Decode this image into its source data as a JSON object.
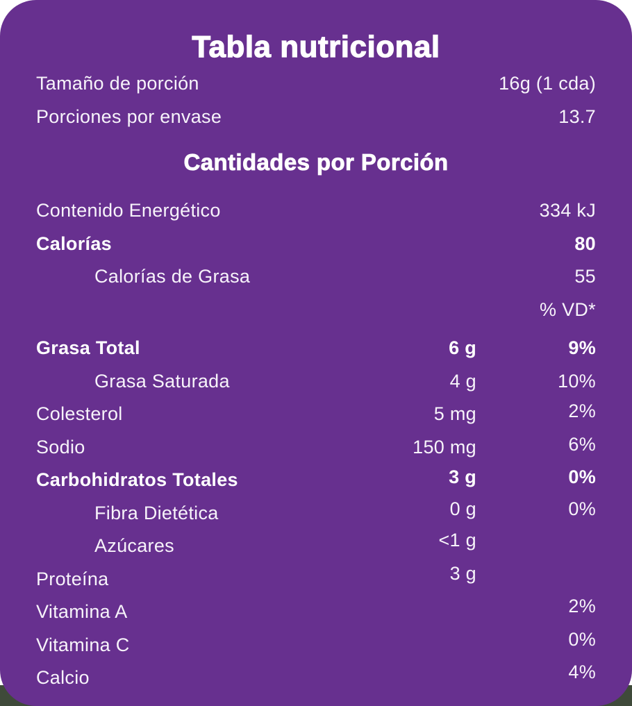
{
  "colors": {
    "card_background": "#67308f",
    "text": "#ffffff",
    "page_background": "#ffffff",
    "bottom_band": "#3f4a3a"
  },
  "card": {
    "title": "Tabla nutricional",
    "serving_rows": [
      {
        "label": "Tamaño de porción",
        "value": "16g (1 cda)"
      },
      {
        "label": "Porciones por envase",
        "value": "13.7"
      }
    ],
    "section_header": "Cantidades por Porción",
    "dv_column_header": "% VD*",
    "nutrient_rows": [
      {
        "label": "Contenido Energético",
        "amount": "",
        "dv": "334 kJ"
      },
      {
        "label": "Calorías",
        "amount": "",
        "dv": "80"
      },
      {
        "label": "Calorías de Grasa",
        "amount": "",
        "dv": "55"
      },
      {
        "label": "Grasa Total",
        "amount": "6 g",
        "dv": "9%"
      },
      {
        "label": "Grasa Saturada",
        "amount": "4 g",
        "dv": "10%"
      },
      {
        "label": "Colesterol",
        "amount": "5 mg",
        "dv": "2%"
      },
      {
        "label": "Sodio",
        "amount": "150 mg",
        "dv": "6%"
      },
      {
        "label": "Carbohidratos Totales",
        "amount": "3 g",
        "dv": "0%"
      },
      {
        "label": "Fibra Dietética",
        "amount": "0 g",
        "dv": "0%"
      },
      {
        "label": "Azúcares",
        "amount": "<1 g",
        "dv": ""
      },
      {
        "label": "Proteína",
        "amount": "3 g",
        "dv": ""
      },
      {
        "label": "Vitamina A",
        "amount": "",
        "dv": "2%"
      },
      {
        "label": "Vitamina C",
        "amount": "",
        "dv": "0%"
      },
      {
        "label": "Calcio",
        "amount": "",
        "dv": "4%"
      }
    ]
  }
}
